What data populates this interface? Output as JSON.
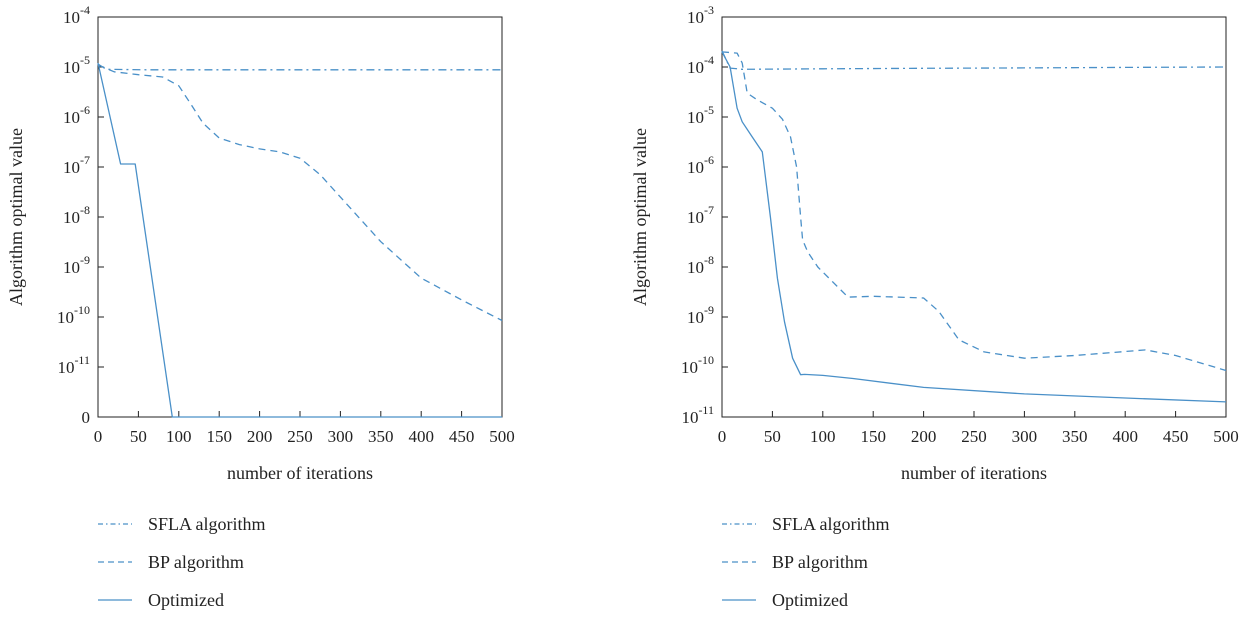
{
  "colors": {
    "series": "#4a90c8",
    "axis": "#222222"
  },
  "chart_data": [
    {
      "type": "line",
      "xlabel": "number of iterations",
      "ylabel": "Algorithm optimal value",
      "xlim": [
        0,
        500
      ],
      "x_ticks": [
        0,
        50,
        100,
        150,
        200,
        250,
        300,
        350,
        400,
        450,
        500
      ],
      "y_scale": "log (lowest level labeled 0)",
      "y_ticks": [
        {
          "base": "0",
          "exp": "",
          "level": -12
        },
        {
          "base": "10",
          "exp": "-11",
          "level": -11
        },
        {
          "base": "10",
          "exp": "-10",
          "level": -10
        },
        {
          "base": "10",
          "exp": "-9",
          "level": -9
        },
        {
          "base": "10",
          "exp": "-8",
          "level": -8
        },
        {
          "base": "10",
          "exp": "-7",
          "level": -7
        },
        {
          "base": "10",
          "exp": "-6",
          "level": -6
        },
        {
          "base": "10",
          "exp": "-5",
          "level": -5
        },
        {
          "base": "10",
          "exp": "-4",
          "level": -4
        }
      ],
      "ylim_log10": [
        -12,
        -4
      ],
      "grid": false,
      "legend_position": "below",
      "series": [
        {
          "name": "SFLA algorithm",
          "dash": "dashdot",
          "x": [
            0,
            10,
            30,
            60,
            100,
            200,
            300,
            400,
            500
          ],
          "y": [
            1.15e-05,
            9e-06,
            8.9e-06,
            8.8e-06,
            8.8e-06,
            8.8e-06,
            8.8e-06,
            8.8e-06,
            8.8e-06
          ]
        },
        {
          "name": "BP algorithm",
          "dash": "dashed",
          "x": [
            0,
            20,
            50,
            80,
            100,
            115,
            130,
            150,
            175,
            200,
            225,
            250,
            275,
            300,
            350,
            400,
            450,
            500
          ],
          "y": [
            1.1e-05,
            8e-06,
            7e-06,
            6.3e-06,
            4.2e-06,
            1.8e-06,
            7.5e-07,
            3.8e-07,
            2.8e-07,
            2.3e-07,
            2e-07,
            1.5e-07,
            7e-08,
            2.5e-08,
            3.2e-09,
            6e-10,
            2.2e-10,
            8.5e-11
          ]
        },
        {
          "name": "Optimized",
          "dash": "solid",
          "x": [
            0,
            28,
            46,
            92,
            100,
            200,
            300,
            400,
            500
          ],
          "y": [
            1.2e-05,
            1.15e-07,
            1.15e-07,
            1e-12,
            1e-12,
            1e-12,
            1e-12,
            1e-12,
            1e-12
          ]
        }
      ]
    },
    {
      "type": "line",
      "xlabel": "number of iterations",
      "ylabel": "Algorithm optimal value",
      "xlim": [
        0,
        500
      ],
      "x_ticks": [
        0,
        50,
        100,
        150,
        200,
        250,
        300,
        350,
        400,
        450,
        500
      ],
      "y_scale": "log",
      "y_ticks": [
        {
          "base": "10",
          "exp": "-11",
          "level": -11
        },
        {
          "base": "10",
          "exp": "-10",
          "level": -10
        },
        {
          "base": "10",
          "exp": "-9",
          "level": -9
        },
        {
          "base": "10",
          "exp": "-8",
          "level": -8
        },
        {
          "base": "10",
          "exp": "-7",
          "level": -7
        },
        {
          "base": "10",
          "exp": "-6",
          "level": -6
        },
        {
          "base": "10",
          "exp": "-5",
          "level": -5
        },
        {
          "base": "10",
          "exp": "-4",
          "level": -4
        },
        {
          "base": "10",
          "exp": "-3",
          "level": -3
        }
      ],
      "ylim_log10": [
        -11,
        -3
      ],
      "grid": false,
      "legend_position": "below",
      "series": [
        {
          "name": "SFLA algorithm",
          "dash": "dashdot",
          "x": [
            0,
            8,
            20,
            100,
            200,
            300,
            400,
            500
          ],
          "y": [
            0.00021,
            9.5e-05,
            9e-05,
            9.2e-05,
            9.4e-05,
            9.6e-05,
            9.8e-05,
            0.0001
          ]
        },
        {
          "name": "BP algorithm",
          "dash": "dashed",
          "x": [
            0,
            15,
            20,
            25,
            35,
            50,
            60,
            68,
            74,
            78,
            80,
            85,
            95,
            110,
            125,
            150,
            200,
            215,
            235,
            260,
            300,
            350,
            420,
            450,
            500
          ],
          "y": [
            0.0002,
            0.00019,
            0.00012,
            3e-05,
            2.2e-05,
            1.5e-05,
            9e-06,
            4e-06,
            1e-06,
            1e-07,
            3.5e-08,
            2e-08,
            1e-08,
            5e-09,
            2.5e-09,
            2.6e-09,
            2.4e-09,
            1.3e-09,
            3.5e-10,
            2e-10,
            1.5e-10,
            1.7e-10,
            2.2e-10,
            1.7e-10,
            8.5e-11
          ]
        },
        {
          "name": "Optimized",
          "dash": "solid",
          "x": [
            0,
            8,
            15,
            20,
            30,
            40,
            48,
            55,
            62,
            70,
            78,
            82,
            100,
            130,
            200,
            300,
            400,
            500
          ],
          "y": [
            0.0002,
            0.0001,
            1.5e-05,
            8e-06,
            4e-06,
            2e-06,
            1e-07,
            6e-09,
            8e-10,
            1.5e-10,
            7e-11,
            7.1e-11,
            6.8e-11,
            5.9e-11,
            3.9e-11,
            2.9e-11,
            2.4e-11,
            2e-11
          ]
        }
      ]
    }
  ]
}
